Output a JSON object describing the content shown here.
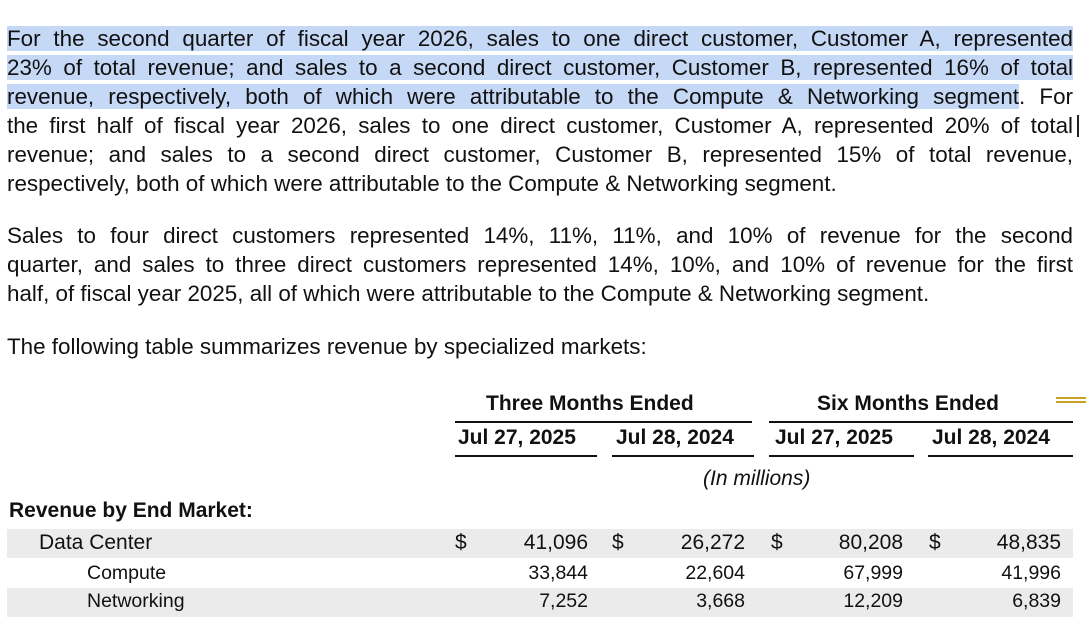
{
  "paragraphs": {
    "p1_highlighted": [
      "For the second quarter of fiscal year 2026, sales to one direct customer, Customer A, represented",
      "23% of total revenue; and sales to a second direct customer, Customer B, represented 16% of total",
      "revenue, respectively, both of which were attributable to the Compute & Networking segment"
    ],
    "p1_rest": [
      ". For",
      "the first half of fiscal year 2026, sales to one direct customer, Customer A, represented 20% of total",
      "revenue; and sales to a second direct customer, Customer B, represented 15% of total revenue,",
      "respectively, both of which were attributable to the Compute & Networking segment."
    ],
    "p2": [
      "Sales to four direct customers represented 14%, 11%, 11%, and 10% of revenue for the second",
      "quarter, and sales to three direct customers represented 14%, 10%, and 10% of revenue for the first",
      "half, of fiscal year 2025, all of which were attributable to the Compute & Networking segment."
    ],
    "p3": "The following table summarizes revenue by specialized markets:"
  },
  "table": {
    "group_headers": [
      "Three Months Ended",
      "Six Months Ended"
    ],
    "date_headers": [
      "Jul 27, 2025",
      "Jul 28, 2024",
      "Jul 27, 2025",
      "Jul 28, 2024"
    ],
    "units": "(In millions)",
    "section_label": "Revenue by End Market:",
    "currency_symbol": "$",
    "rows": [
      {
        "label": "Data Center",
        "values": [
          "41,096",
          "26,272",
          "80,208",
          "48,835"
        ]
      },
      {
        "label": "Compute",
        "values": [
          "33,844",
          "22,604",
          "67,999",
          "41,996"
        ]
      },
      {
        "label": "Networking",
        "values": [
          "7,252",
          "3,668",
          "12,209",
          "6,839"
        ]
      }
    ]
  },
  "colors": {
    "highlight": "#c5d8f5",
    "row_shade": "#ebebeb",
    "accent_gold": "#c9a227"
  }
}
